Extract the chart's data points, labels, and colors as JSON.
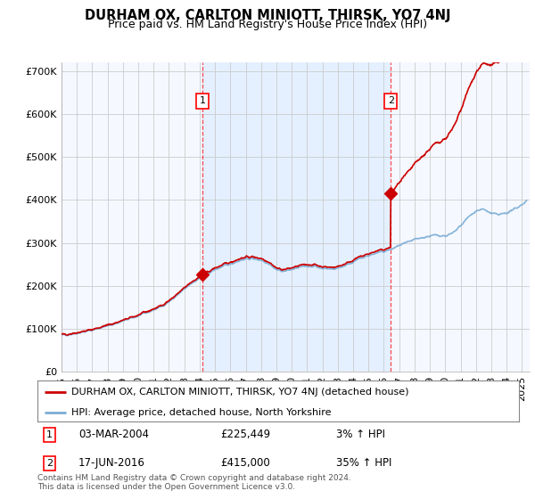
{
  "title": "DURHAM OX, CARLTON MINIOTT, THIRSK, YO7 4NJ",
  "subtitle": "Price paid vs. HM Land Registry's House Price Index (HPI)",
  "ylabel_ticks": [
    "£0",
    "£100K",
    "£200K",
    "£300K",
    "£400K",
    "£500K",
    "£600K",
    "£700K"
  ],
  "ylim": [
    0,
    720000
  ],
  "xlim_start": 1995.0,
  "xlim_end": 2025.5,
  "sale1_x": 2004.17,
  "sale1_y": 225449,
  "sale2_x": 2016.46,
  "sale2_y": 415000,
  "sale1_label": "1",
  "sale2_label": "2",
  "legend_property": "DURHAM OX, CARLTON MINIOTT, THIRSK, YO7 4NJ (detached house)",
  "legend_hpi": "HPI: Average price, detached house, North Yorkshire",
  "footer": "Contains HM Land Registry data © Crown copyright and database right 2024.\nThis data is licensed under the Open Government Licence v3.0.",
  "property_color": "#cc0000",
  "hpi_color": "#7aadd4",
  "shade_color": "#ddeeff",
  "background_color": "#ffffff",
  "grid_color": "#cccccc",
  "plot_bg_color": "#f5f8ff"
}
